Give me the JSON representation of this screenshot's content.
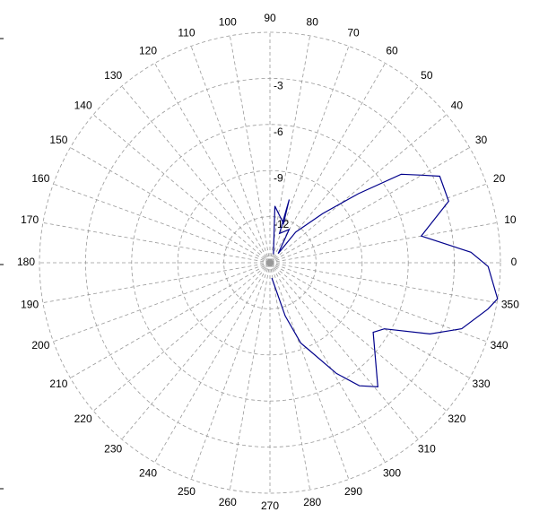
{
  "chart_data": {
    "type": "polar",
    "theta": [
      277,
      286,
      291,
      294,
      301,
      306,
      311,
      326,
      330,
      336,
      341,
      348,
      351,
      359,
      3,
      10,
      19,
      27,
      30,
      34,
      38,
      43,
      50,
      48,
      60,
      72,
      73,
      71,
      85,
      68
    ],
    "values": [
      -14.0,
      -11.4,
      -9.4,
      -8.8,
      -6.6,
      -5.1,
      -4.3,
      -6.9,
      -6.4,
      -3.6,
      -1.8,
      -0.5,
      0,
      -0.8,
      -1.9,
      -5.0,
      -2.7,
      -2.6,
      -3.6,
      -4.7,
      -7.7,
      -10.3,
      -12.4,
      -14.2,
      -12.5,
      -13.0,
      -10.7,
      -12.3,
      -11.3,
      -14.4
    ],
    "color": "#00008b",
    "rlim": [
      -15,
      0
    ],
    "rticks": [
      -12,
      -9,
      -6,
      -3
    ],
    "thetaticks": [
      0,
      10,
      20,
      30,
      40,
      50,
      60,
      70,
      80,
      90,
      100,
      110,
      120,
      130,
      140,
      150,
      160,
      170,
      180,
      190,
      200,
      210,
      220,
      230,
      240,
      250,
      260,
      270,
      280,
      290,
      300,
      310,
      320,
      330,
      340,
      350
    ],
    "grid": true
  }
}
